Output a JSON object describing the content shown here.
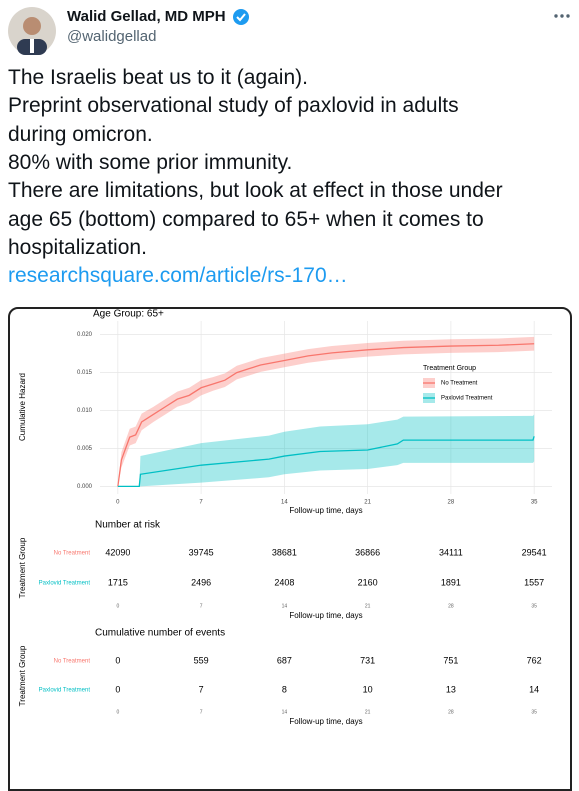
{
  "tweet": {
    "author": "Walid Gellad, MD MPH",
    "handle": "@walidgellad",
    "text_lines": [
      "The Israelis beat us to it (again).",
      "Preprint observational study of paxlovid in adults",
      "during omicron.",
      "80% with some prior immunity.",
      "There are limitations, but look at effect in those under",
      "age 65 (bottom) compared to 65+ when it comes to",
      "hospitalization."
    ],
    "link": "researchsquare.com/article/rs-170…"
  },
  "chart_data": {
    "type": "line",
    "title": "Age Group: 65+",
    "y_label": "Cumulative Hazard",
    "x_label": "Follow-up time, days",
    "xlim": [
      -1.5,
      36.5
    ],
    "xticks": [
      0,
      7,
      14,
      21,
      28,
      35
    ],
    "ylim": [
      -0.001,
      0.0218
    ],
    "yticks": [
      {
        "value": 0,
        "label": "0.000"
      },
      {
        "value": 0.005,
        "label": "0.005"
      },
      {
        "value": 0.01,
        "label": "0.010"
      },
      {
        "value": 0.015,
        "label": "0.015"
      },
      {
        "value": 0.02,
        "label": "0.020"
      }
    ],
    "grid": true,
    "legend_title": "Treatment Group",
    "legend_position": "right",
    "series": [
      {
        "name": "No Treatment",
        "color": "#f8766d",
        "x": [
          0,
          0.3,
          1,
          1.5,
          2,
          3,
          4,
          5,
          6,
          7,
          8,
          9,
          10,
          11,
          12,
          14,
          16,
          18,
          21,
          24,
          28,
          32,
          35
        ],
        "values": [
          0,
          0.0035,
          0.0065,
          0.0068,
          0.0085,
          0.0095,
          0.0105,
          0.0115,
          0.012,
          0.013,
          0.0135,
          0.014,
          0.015,
          0.0155,
          0.016,
          0.0166,
          0.0172,
          0.0176,
          0.018,
          0.0183,
          0.0185,
          0.0186,
          0.0188
        ],
        "upper": [
          0,
          0.0045,
          0.0076,
          0.0079,
          0.0096,
          0.0105,
          0.0115,
          0.0125,
          0.013,
          0.014,
          0.0144,
          0.0149,
          0.0159,
          0.0164,
          0.0169,
          0.0175,
          0.0181,
          0.0185,
          0.0189,
          0.0192,
          0.0194,
          0.0195,
          0.0197
        ],
        "lower": [
          0,
          0.0025,
          0.0054,
          0.0057,
          0.0074,
          0.0085,
          0.0095,
          0.0105,
          0.011,
          0.012,
          0.0126,
          0.0131,
          0.0141,
          0.0146,
          0.0151,
          0.0157,
          0.0163,
          0.0167,
          0.0171,
          0.0174,
          0.0176,
          0.0177,
          0.0179
        ],
        "at_risk": [
          42090,
          39745,
          38681,
          36866,
          34111,
          29541
        ],
        "events": [
          0,
          559,
          687,
          731,
          751,
          762
        ]
      },
      {
        "name": "Paxlovid Treatment",
        "color": "#00bfc4",
        "x": [
          0,
          1.8,
          1.9,
          7,
          12.7,
          14,
          17,
          21,
          23.5,
          24,
          34.9,
          35
        ],
        "values": [
          0,
          0,
          0.0016,
          0.0028,
          0.0036,
          0.004,
          0.0046,
          0.0048,
          0.0056,
          0.0061,
          0.0061,
          0.0066
        ],
        "upper": [
          0,
          0,
          0.004,
          0.0057,
          0.0067,
          0.0072,
          0.0079,
          0.0082,
          0.0088,
          0.0092,
          0.0093,
          0.0095
        ],
        "lower": [
          0,
          0,
          0,
          0.0005,
          0.0012,
          0.0016,
          0.0021,
          0.0023,
          0.0028,
          0.0031,
          0.0031,
          0.0033
        ],
        "at_risk": [
          1715,
          2496,
          2408,
          2160,
          1891,
          1557
        ],
        "events": [
          0,
          7,
          8,
          10,
          13,
          14
        ]
      }
    ],
    "risk_title": "Number at risk",
    "events_title": "Cumulative number of events",
    "table_y_label": "Treatment Group"
  }
}
